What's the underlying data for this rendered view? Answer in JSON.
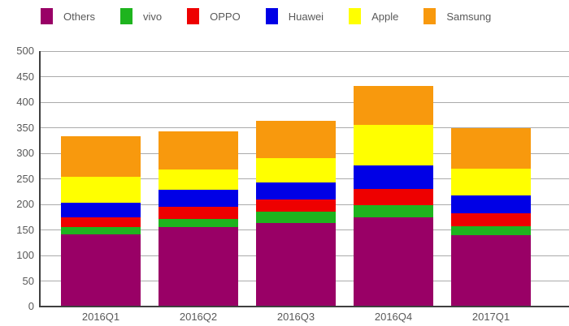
{
  "chart_data": {
    "type": "bar",
    "stacked": true,
    "title": "",
    "xlabel": "",
    "ylabel": "",
    "categories": [
      "2016Q1",
      "2016Q2",
      "2016Q3",
      "2016Q4",
      "2017Q1"
    ],
    "series": [
      {
        "name": "Others",
        "color": "#990066",
        "values": [
          141,
          156,
          164,
          174,
          140
        ]
      },
      {
        "name": "vivo",
        "color": "#1eb41e",
        "values": [
          14,
          15,
          21,
          24,
          17
        ]
      },
      {
        "name": "OPPO",
        "color": "#ee0000",
        "values": [
          19,
          24,
          24,
          32,
          26
        ]
      },
      {
        "name": "Huawei",
        "color": "#0000e6",
        "values": [
          29,
          33,
          34,
          46,
          35
        ]
      },
      {
        "name": "Apple",
        "color": "#ffff00",
        "values": [
          51,
          40,
          47,
          80,
          52
        ]
      },
      {
        "name": "Samsung",
        "color": "#f8990d",
        "values": [
          80,
          75,
          73,
          76,
          79
        ]
      }
    ],
    "totals": [
      334,
      343,
      363,
      432,
      349
    ],
    "ylim": [
      0,
      500
    ],
    "ytick_step": 50,
    "yticks": [
      0,
      50,
      100,
      150,
      200,
      250,
      300,
      350,
      400,
      450,
      500
    ],
    "grid": true,
    "legend_position": "top",
    "legend_order": [
      "Others",
      "vivo",
      "OPPO",
      "Huawei",
      "Apple",
      "Samsung"
    ]
  },
  "colors": {
    "background": "#ffffff",
    "gridline": "#ababab",
    "axis": "#3f3f3f",
    "tick_text": "#595959"
  }
}
